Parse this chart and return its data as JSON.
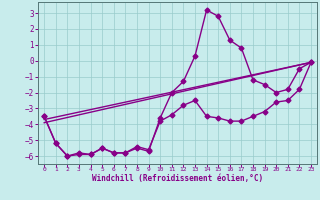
{
  "title": "",
  "xlabel": "Windchill (Refroidissement éolien,°C)",
  "ylabel": "",
  "bg_color": "#c8ecec",
  "line_color": "#880088",
  "grid_color": "#99cccc",
  "xlim": [
    -0.5,
    23.5
  ],
  "ylim": [
    -6.5,
    3.7
  ],
  "xticks": [
    0,
    1,
    2,
    3,
    4,
    5,
    6,
    7,
    8,
    9,
    10,
    11,
    12,
    13,
    14,
    15,
    16,
    17,
    18,
    19,
    20,
    21,
    22,
    23
  ],
  "yticks": [
    3,
    2,
    1,
    0,
    -1,
    -2,
    -3,
    -4,
    -5,
    -6
  ],
  "series": [
    {
      "x": [
        0,
        1,
        2,
        3,
        4,
        5,
        6,
        7,
        8,
        9,
        10,
        11,
        12,
        13,
        14,
        15,
        16,
        17,
        18,
        19,
        20,
        21,
        22,
        23
      ],
      "y": [
        -3.5,
        -5.2,
        -6.0,
        -5.8,
        -5.9,
        -5.5,
        -5.8,
        -5.8,
        -5.5,
        -5.7,
        -3.6,
        -2.0,
        -1.3,
        0.3,
        3.2,
        2.8,
        1.3,
        0.8,
        -1.2,
        -1.5,
        -2.0,
        -1.8,
        -0.5,
        -0.1
      ],
      "marker": "D",
      "markersize": 2.5,
      "linewidth": 1.0
    },
    {
      "x": [
        0,
        1,
        2,
        3,
        4,
        5,
        6,
        7,
        8,
        9,
        10,
        11,
        12,
        13,
        14,
        15,
        16,
        17,
        18,
        19,
        20,
        21,
        22,
        23
      ],
      "y": [
        -3.5,
        -5.2,
        -6.0,
        -5.9,
        -5.9,
        -5.5,
        -5.8,
        -5.8,
        -5.4,
        -5.6,
        -3.8,
        -3.4,
        -2.8,
        -2.5,
        -3.5,
        -3.6,
        -3.8,
        -3.8,
        -3.5,
        -3.2,
        -2.6,
        -2.5,
        -1.8,
        -0.1
      ],
      "marker": "D",
      "markersize": 2.5,
      "linewidth": 1.0
    },
    {
      "x": [
        0,
        23
      ],
      "y": [
        -3.7,
        -0.1
      ],
      "marker": null,
      "markersize": 0,
      "linewidth": 1.0
    },
    {
      "x": [
        0,
        23
      ],
      "y": [
        -3.9,
        -0.1
      ],
      "marker": null,
      "markersize": 0,
      "linewidth": 1.0
    }
  ]
}
